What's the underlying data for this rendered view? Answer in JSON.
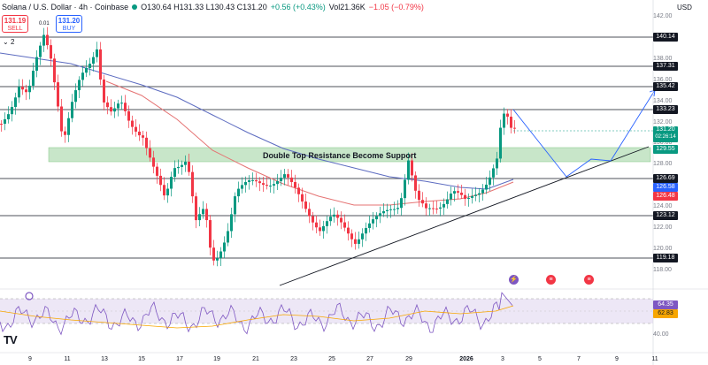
{
  "header": {
    "symbol": "Solana / U.S. Dollar · 4h · Coinbase",
    "ohlc": "O130.64 H131.33 L130.43 C131.20",
    "change": "+0.56 (+0.43%)",
    "volume": "Vol21.36K",
    "volume_change": "−1.05 (−0.79%)"
  },
  "trade": {
    "sell_price": "131.19",
    "sell_label": "SELL",
    "buy_price": "131.20",
    "buy_label": "BUY",
    "spread": "0.01"
  },
  "indicator_count": "2",
  "currency": "USD",
  "annotation": "Double Top Resistance Become Support",
  "price_axis": [
    "142.00",
    "140.00",
    "138.00",
    "136.00",
    "134.00",
    "132.00",
    "130.00",
    "128.00",
    "126.00",
    "124.00",
    "122.00",
    "120.00",
    "118.00"
  ],
  "level_tags": [
    {
      "value": "140.14",
      "color": "#131722"
    },
    {
      "value": "137.31",
      "color": "#131722"
    },
    {
      "value": "135.42",
      "color": "#131722"
    },
    {
      "value": "133.23",
      "color": "#131722"
    },
    {
      "value": "129.55",
      "color": "#089981"
    },
    {
      "value": "126.69",
      "color": "#131722"
    },
    {
      "value": "126.58",
      "color": "#2962ff"
    },
    {
      "value": "126.48",
      "color": "#f23645"
    },
    {
      "value": "123.12",
      "color": "#131722"
    },
    {
      "value": "119.18",
      "color": "#131722"
    }
  ],
  "last_price": {
    "value": "131.20",
    "countdown": "02:26:14"
  },
  "rsi": {
    "value": "64.35",
    "ma": "62.83",
    "axis_label": "40.00",
    "value_color": "#7e57c2",
    "ma_color": "#f7a600"
  },
  "time_axis": [
    "9",
    "11",
    "13",
    "15",
    "17",
    "19",
    "21",
    "23",
    "25",
    "27",
    "29",
    "2026",
    "3",
    "5",
    "7",
    "9",
    "11"
  ],
  "colors": {
    "up": "#089981",
    "down": "#f23645",
    "zone": "#c8e6c9",
    "ma_blue": "#5c6bc0",
    "ma_red": "#e57373",
    "projection": "#2962ff"
  },
  "events": [
    {
      "icon": "lightning-icon",
      "color": "#7e57c2"
    },
    {
      "icon": "flag-us-icon",
      "color": "#f23645"
    },
    {
      "icon": "flag-us-icon",
      "color": "#f23645"
    }
  ]
}
